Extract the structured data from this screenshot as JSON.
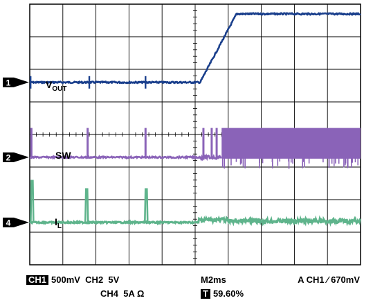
{
  "figure_id": "08301-041",
  "chart_data": {
    "type": "line",
    "title": "",
    "grid": true,
    "divisions": {
      "x": 10,
      "y": 8
    },
    "time_per_div_ms": 2,
    "trigger_position_percent": 59.6,
    "channels": [
      {
        "marker": "1",
        "label_main": "V",
        "label_sub": "OUT",
        "color": "#1a3f8c",
        "scale": "500mV",
        "ground_div": 5.6,
        "description_points_ms": [
          [
            0,
            0
          ],
          [
            10.3,
            0
          ],
          [
            12.5,
            2.1
          ],
          [
            20,
            2.1
          ]
        ],
        "units_div": "y divisions above ground"
      },
      {
        "marker": "2",
        "label_main": "SW",
        "label_sub": "",
        "color": "#8a63b8",
        "scale": "5V",
        "ground_div": 3.3,
        "pulses_ms": [
          0.1,
          3.5,
          7.0,
          10.5,
          11.0,
          11.3
        ],
        "continuous_switching_from_ms": 11.6,
        "high_level_div": 0.9
      },
      {
        "marker": "4",
        "label_main": "I",
        "label_sub": "L",
        "color": "#5fb48c",
        "scale": "5A",
        "ground_div": 1.3,
        "spikes_ms": [
          0.1,
          3.4,
          7.0
        ],
        "spike_level_div": 1.15,
        "ripple_from_ms": 10.2
      }
    ],
    "readout": {
      "ch1_tag": "CH1",
      "ch1_scale": "500mV",
      "ch2": "CH2",
      "ch2_scale": "5V",
      "ch4": "CH4",
      "ch4_scale": "5A Ω",
      "timebase": "M2ms",
      "trigger": "A  CH1",
      "trigger_slope": "∕",
      "trigger_level": "670mV",
      "t_tag": "T",
      "t_value": "59.60%"
    }
  }
}
